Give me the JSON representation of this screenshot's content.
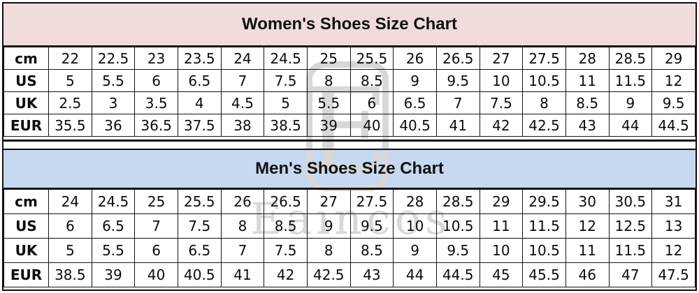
{
  "colors": {
    "women_header_bg": "#f0dcdb",
    "men_header_bg": "#c6d9f0",
    "border": "#101010",
    "watermark": "#d8d8d8"
  },
  "watermark": {
    "logo_letter": "E",
    "brand_text": "Eaincos"
  },
  "women_section": {
    "title": "Women's Shoes Size Chart",
    "rows": [
      {
        "label": "cm",
        "values": [
          "22",
          "22.5",
          "23",
          "23.5",
          "24",
          "24.5",
          "25",
          "25.5",
          "26",
          "26.5",
          "27",
          "27.5",
          "28",
          "28.5",
          "29"
        ]
      },
      {
        "label": "US",
        "values": [
          "5",
          "5.5",
          "6",
          "6.5",
          "7",
          "7.5",
          "8",
          "8.5",
          "9",
          "9.5",
          "10",
          "10.5",
          "11",
          "11.5",
          "12"
        ]
      },
      {
        "label": "UK",
        "values": [
          "2.5",
          "3",
          "3.5",
          "4",
          "4.5",
          "5",
          "5.5",
          "6",
          "6.5",
          "7",
          "7.5",
          "8",
          "8.5",
          "9",
          "9.5"
        ]
      },
      {
        "label": "EUR",
        "values": [
          "35.5",
          "36",
          "36.5",
          "37.5",
          "38",
          "38.5",
          "39",
          "40",
          "40.5",
          "41",
          "42",
          "42.5",
          "43",
          "44",
          "44.5"
        ]
      }
    ]
  },
  "men_section": {
    "title": "Men's Shoes Size Chart",
    "rows": [
      {
        "label": "cm",
        "values": [
          "24",
          "24.5",
          "25",
          "25.5",
          "26",
          "26.5",
          "27",
          "27.5",
          "28",
          "28.5",
          "29",
          "29.5",
          "30",
          "30.5",
          "31"
        ]
      },
      {
        "label": "US",
        "values": [
          "6",
          "6.5",
          "7",
          "7.5",
          "8",
          "8.5",
          "9",
          "9.5",
          "10",
          "10.5",
          "11",
          "11.5",
          "12",
          "12.5",
          "13"
        ]
      },
      {
        "label": "UK",
        "values": [
          "5",
          "5.5",
          "6",
          "6.5",
          "7",
          "7.5",
          "8",
          "8.5",
          "9",
          "9.5",
          "10",
          "10.5",
          "11",
          "11.5",
          "12"
        ]
      },
      {
        "label": "EUR",
        "values": [
          "38.5",
          "39",
          "40",
          "40.5",
          "41",
          "42",
          "42.5",
          "43",
          "44",
          "44.5",
          "45",
          "45.5",
          "46",
          "47",
          "47.5"
        ]
      }
    ]
  }
}
